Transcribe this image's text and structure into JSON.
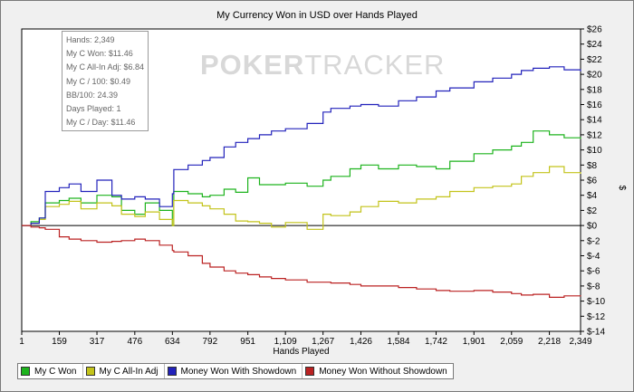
{
  "chart_data": {
    "type": "line",
    "title": "My Currency Won in USD over Hands Played",
    "xlabel": "Hands Played",
    "ylabel": "$",
    "xlim": [
      1,
      2349
    ],
    "ylim": [
      -14,
      26
    ],
    "x_ticks": [
      1,
      159,
      317,
      476,
      634,
      792,
      951,
      1109,
      1267,
      1426,
      1584,
      1742,
      1901,
      2059,
      2218,
      2349
    ],
    "x_tick_labels": [
      "1",
      "159",
      "317",
      "476",
      "634",
      "792",
      "951",
      "1,109",
      "1,267",
      "1,426",
      "1,584",
      "1,742",
      "1,901",
      "2,059",
      "2,218",
      "2,349"
    ],
    "y_ticks": [
      -14,
      -12,
      -10,
      -8,
      -6,
      -4,
      -2,
      0,
      2,
      4,
      6,
      8,
      10,
      12,
      14,
      16,
      18,
      20,
      22,
      24,
      26
    ],
    "y_tick_labels": [
      "$-14",
      "$-12",
      "$-10",
      "$-8",
      "$-6",
      "$-4",
      "$-2",
      "$0",
      "$2",
      "$4",
      "$6",
      "$8",
      "$10",
      "$12",
      "$14",
      "$16",
      "$18",
      "$20",
      "$22",
      "$24",
      "$26"
    ],
    "grid": false,
    "legend_position": "bottom",
    "series": [
      {
        "name": "My C Won",
        "color": "#1db31d",
        "x": [
          1,
          40,
          75,
          100,
          159,
          200,
          250,
          317,
          380,
          420,
          476,
          520,
          580,
          634,
          640,
          700,
          760,
          792,
          851,
          900,
          951,
          1000,
          1050,
          1109,
          1200,
          1267,
          1300,
          1380,
          1426,
          1500,
          1584,
          1660,
          1742,
          1800,
          1901,
          1980,
          2059,
          2100,
          2150,
          2218,
          2280,
          2349
        ],
        "y": [
          0,
          0.5,
          1,
          3,
          3.3,
          3.6,
          3,
          4,
          3.8,
          2,
          1.5,
          3,
          2,
          0,
          4.5,
          4.2,
          3.8,
          4,
          4.8,
          4.4,
          6.3,
          5.4,
          5.4,
          5.6,
          5.2,
          6,
          6.5,
          7.5,
          8,
          7.5,
          8,
          7.8,
          7.5,
          8.5,
          9.5,
          10,
          10.5,
          11,
          12.5,
          12,
          11.6,
          11.46
        ]
      },
      {
        "name": "My C All-In Adj",
        "color": "#c3c31a",
        "x": [
          1,
          40,
          75,
          100,
          159,
          200,
          250,
          317,
          380,
          420,
          476,
          520,
          580,
          634,
          640,
          700,
          760,
          792,
          851,
          900,
          951,
          1000,
          1050,
          1109,
          1200,
          1267,
          1300,
          1380,
          1426,
          1500,
          1584,
          1660,
          1742,
          1800,
          1901,
          1980,
          2059,
          2100,
          2150,
          2218,
          2280,
          2349
        ],
        "y": [
          0,
          0.3,
          0.8,
          2.5,
          2.8,
          3.2,
          2.2,
          3,
          2.6,
          1.5,
          1.2,
          1.8,
          0.8,
          0,
          3.3,
          3,
          2.6,
          2.2,
          1.5,
          0.6,
          0.5,
          0.3,
          -0.2,
          0.4,
          -0.5,
          1.5,
          1.3,
          1.8,
          2.5,
          3.2,
          3,
          3.5,
          3.8,
          4.5,
          5,
          5.2,
          5.5,
          6.5,
          7,
          7.8,
          7,
          6.84
        ]
      },
      {
        "name": "Money Won With Showdown",
        "color": "#2222bb",
        "x": [
          1,
          40,
          75,
          100,
          159,
          200,
          250,
          317,
          380,
          420,
          476,
          520,
          580,
          634,
          640,
          700,
          760,
          792,
          851,
          900,
          951,
          1000,
          1050,
          1109,
          1200,
          1267,
          1300,
          1380,
          1426,
          1500,
          1584,
          1660,
          1742,
          1800,
          1901,
          1980,
          2059,
          2100,
          2150,
          2218,
          2280,
          2349
        ],
        "y": [
          0,
          0.3,
          1,
          4.5,
          5,
          5.5,
          4.5,
          6,
          4,
          3.5,
          3.8,
          3.5,
          2.5,
          4.2,
          7.4,
          8,
          8.6,
          9,
          10.4,
          11,
          11.5,
          12,
          12.5,
          12.8,
          13.5,
          15,
          15.5,
          15.8,
          16,
          15.8,
          16.5,
          17,
          17.8,
          18.2,
          19,
          19.5,
          20,
          20.5,
          20.8,
          21,
          20.6,
          20.4
        ]
      },
      {
        "name": "Money Won Without Showdown",
        "color": "#bb2222",
        "x": [
          1,
          40,
          75,
          100,
          159,
          200,
          250,
          317,
          380,
          420,
          476,
          520,
          580,
          634,
          640,
          700,
          760,
          792,
          851,
          900,
          951,
          1000,
          1050,
          1109,
          1200,
          1267,
          1300,
          1380,
          1426,
          1500,
          1584,
          1660,
          1742,
          1800,
          1901,
          1980,
          2059,
          2100,
          2150,
          2218,
          2280,
          2349
        ],
        "y": [
          0,
          -0.2,
          -0.3,
          -0.5,
          -1.5,
          -1.8,
          -2,
          -2.2,
          -2.1,
          -2,
          -1.8,
          -2,
          -2.6,
          -3.3,
          -3.5,
          -4,
          -5,
          -5.5,
          -6,
          -6.3,
          -6.5,
          -6.8,
          -7,
          -7.2,
          -7.5,
          -7.5,
          -7.6,
          -7.8,
          -8,
          -8,
          -8.2,
          -8.4,
          -8.6,
          -8.7,
          -8.6,
          -8.8,
          -9,
          -9.2,
          -9.1,
          -9.5,
          -9.3,
          -9.38
        ]
      }
    ]
  },
  "watermark": {
    "bold": "POKER",
    "thin": "TRACKER"
  },
  "stats": [
    "Hands: 2,349",
    "My C Won: $11.46",
    "My C All-In Adj: $6.84",
    "My C / 100: $0.49",
    "BB/100: 24.39",
    "Days Played: 1",
    "My C / Day: $11.46"
  ],
  "legend": [
    {
      "label": "My C Won",
      "color": "#1db31d"
    },
    {
      "label": "My C All-In Adj",
      "color": "#c3c31a"
    },
    {
      "label": "Money Won With Showdown",
      "color": "#2222bb"
    },
    {
      "label": "Money Won Without Showdown",
      "color": "#bb2222"
    }
  ]
}
